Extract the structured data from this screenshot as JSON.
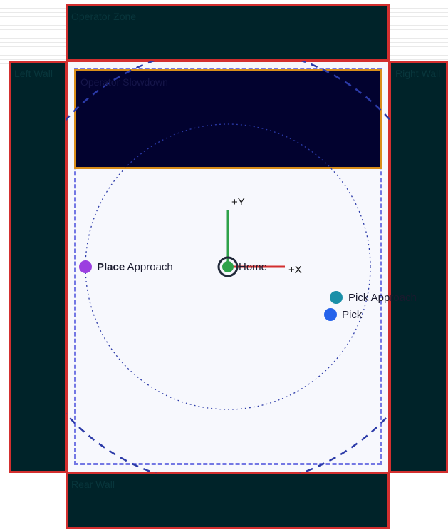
{
  "zones": {
    "operator_zone": "Operator Zone",
    "left_wall": "Left Wall",
    "right_wall": "Right Wall",
    "rear_wall": "Rear Wall",
    "operator_slowdown": "Operator Slowdown"
  },
  "axes": {
    "x_label": "+X",
    "y_label": "+Y"
  },
  "points": {
    "home": "Home",
    "place_approach_bold": "Place",
    "place_approach_rest": " Approach",
    "pick_approach": "Pick Approach",
    "pick": "Pick"
  },
  "colors": {
    "zone_fill": "#002329",
    "zone_border": "#d32f2f",
    "slowdown_fill": "#02022f",
    "slowdown_border": "#d98e1a",
    "x_axis": "#d32f2f",
    "y_axis": "#2ea24a",
    "home": "#2ea24a",
    "place_approach": "#9b3fe0",
    "pick_approach": "#1a8fa8",
    "pick": "#2563eb"
  }
}
